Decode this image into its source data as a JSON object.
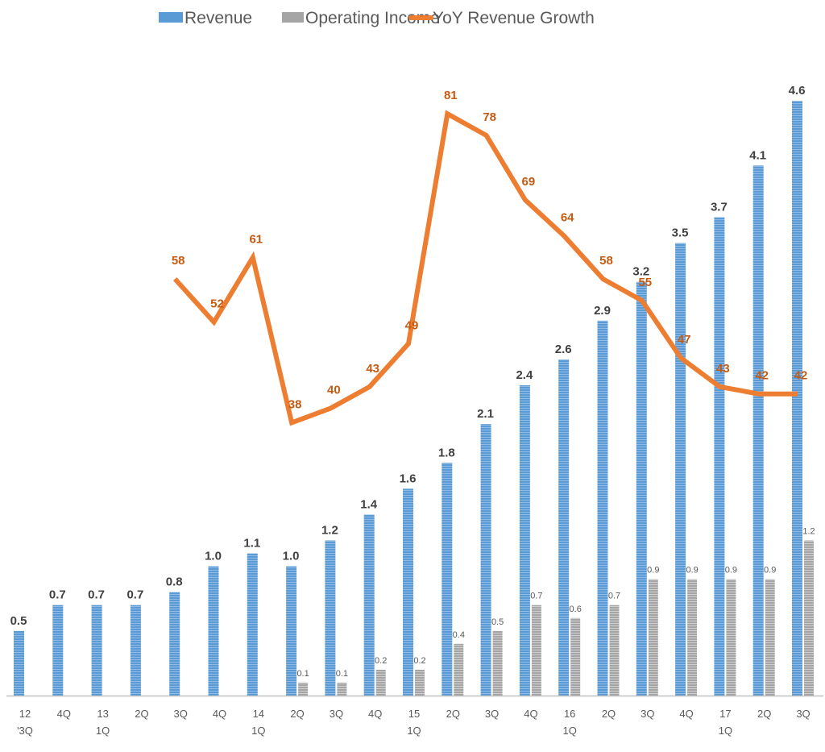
{
  "chart_data": {
    "type": "bar",
    "title": "",
    "xlabel": "",
    "ylabel": "",
    "legend_position": "top",
    "grid": false,
    "categories": [
      [
        "12",
        "'3Q"
      ],
      [
        "4Q"
      ],
      [
        "13",
        "1Q"
      ],
      [
        "2Q"
      ],
      [
        "3Q"
      ],
      [
        "4Q"
      ],
      [
        "14",
        "1Q"
      ],
      [
        "2Q"
      ],
      [
        "3Q"
      ],
      [
        "4Q"
      ],
      [
        "15",
        "1Q"
      ],
      [
        "2Q"
      ],
      [
        "3Q"
      ],
      [
        "4Q"
      ],
      [
        "16",
        "1Q"
      ],
      [
        "2Q"
      ],
      [
        "3Q"
      ],
      [
        "4Q"
      ],
      [
        "17",
        "1Q"
      ],
      [
        "2Q"
      ],
      [
        "3Q"
      ]
    ],
    "ylim": [
      0,
      5
    ],
    "y2lim": [
      0,
      90
    ],
    "series": [
      {
        "name": "Revenue",
        "type": "bar",
        "axis": "primary",
        "color": "#5b9bd5",
        "values": [
          0.5,
          0.7,
          0.7,
          0.7,
          0.8,
          1.0,
          1.1,
          1.0,
          1.2,
          1.4,
          1.6,
          1.8,
          2.1,
          2.4,
          2.6,
          2.9,
          3.2,
          3.5,
          3.7,
          4.1,
          4.6
        ],
        "labels": [
          "0.5",
          "0.7",
          "0.7",
          "0.7",
          "0.8",
          "1.0",
          "1.1",
          "1.0",
          "1.2",
          "1.4",
          "1.6",
          "1.8",
          "2.1",
          "2.4",
          "2.6",
          "2.9",
          "3.2",
          "3.5",
          "3.7",
          "4.1",
          "4.6"
        ]
      },
      {
        "name": "Operating Income",
        "type": "bar",
        "axis": "primary",
        "color": "#a5a5a5",
        "values": [
          null,
          null,
          null,
          null,
          null,
          null,
          null,
          0.1,
          0.1,
          0.2,
          0.2,
          0.4,
          0.5,
          0.7,
          0.6,
          0.7,
          0.9,
          0.9,
          0.9,
          0.9,
          1.2
        ],
        "labels": [
          null,
          null,
          null,
          null,
          null,
          null,
          null,
          "0.1",
          "0.1",
          "0.2",
          "0.2",
          "0.4",
          "0.5",
          "0.7",
          "0.6",
          "0.7",
          "0.9",
          "0.9",
          "0.9",
          "0.9",
          "1.2"
        ]
      },
      {
        "name": "YoY Revenue Growth",
        "type": "line",
        "axis": "secondary",
        "color": "#ed7d31",
        "values": [
          null,
          null,
          null,
          null,
          58,
          52,
          61,
          38,
          40,
          43,
          49,
          81,
          78,
          69,
          64,
          58,
          55,
          47,
          43,
          42,
          42
        ],
        "labels": [
          null,
          null,
          null,
          null,
          "58",
          "52",
          "61",
          "38",
          "40",
          "43",
          "49",
          "81",
          "78",
          "69",
          "64",
          "58",
          "55",
          "47",
          "43",
          "42",
          "42"
        ]
      }
    ]
  }
}
